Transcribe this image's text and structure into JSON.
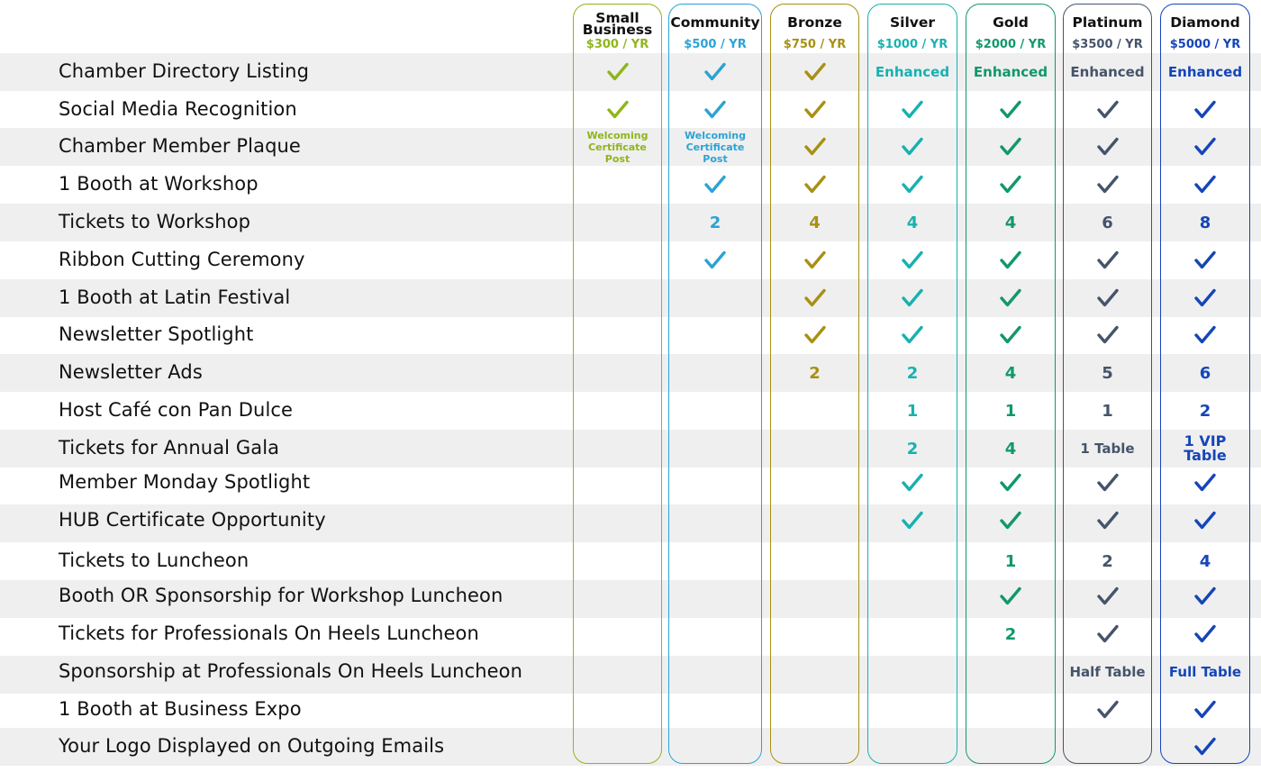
{
  "tiers": [
    {
      "name": "Small Business",
      "price": "$300 / YR",
      "color": "#8fb51b"
    },
    {
      "name": "Community",
      "price": "$500 / YR",
      "color": "#2aa3d4"
    },
    {
      "name": "Bronze",
      "price": "$750 / YR",
      "color": "#a89012"
    },
    {
      "name": "Silver",
      "price": "$1000 / YR",
      "color": "#17b1b1"
    },
    {
      "name": "Gold",
      "price": "$2000 / YR",
      "color": "#11986a"
    },
    {
      "name": "Platinum",
      "price": "$3500 / YR",
      "color": "#45546a"
    },
    {
      "name": "Diamond",
      "price": "$5000 / YR",
      "color": "#1545b8"
    }
  ],
  "features": [
    {
      "label": "Chamber Directory Listing",
      "values": [
        "check",
        "check",
        "check",
        "Enhanced",
        "Enhanced",
        "Enhanced",
        "Enhanced"
      ]
    },
    {
      "label": "Social Media Recognition",
      "values": [
        "check",
        "check",
        "check",
        "check",
        "check",
        "check",
        "check"
      ]
    },
    {
      "label": "Chamber Member Plaque",
      "values": [
        "Welcoming Certificate Post",
        "Welcoming Certificate Post",
        "check",
        "check",
        "check",
        "check",
        "check"
      ]
    },
    {
      "label": "1 Booth at Workshop",
      "values": [
        "",
        "check",
        "check",
        "check",
        "check",
        "check",
        "check"
      ]
    },
    {
      "label": "Tickets to Workshop",
      "values": [
        "",
        "2",
        "4",
        "4",
        "4",
        "6",
        "8"
      ]
    },
    {
      "label": "Ribbon Cutting Ceremony",
      "values": [
        "",
        "check",
        "check",
        "check",
        "check",
        "check",
        "check"
      ]
    },
    {
      "label": "1 Booth at Latin Festival",
      "values": [
        "",
        "",
        "check",
        "check",
        "check",
        "check",
        "check"
      ]
    },
    {
      "label": "Newsletter Spotlight",
      "values": [
        "",
        "",
        "check",
        "check",
        "check",
        "check",
        "check"
      ]
    },
    {
      "label": "Newsletter Ads",
      "values": [
        "",
        "",
        "2",
        "2",
        "4",
        "5",
        "6"
      ]
    },
    {
      "label": "Host Café con Pan Dulce",
      "values": [
        "",
        "",
        "",
        "1",
        "1",
        "1",
        "2"
      ]
    },
    {
      "label": "Tickets for Annual Gala",
      "values": [
        "",
        "",
        "",
        "2",
        "4",
        "1 Table",
        "1 VIP Table"
      ]
    },
    {
      "label": "Member Monday Spotlight",
      "values": [
        "",
        "",
        "",
        "check",
        "check",
        "check",
        "check"
      ]
    },
    {
      "label": "HUB Certificate Opportunity",
      "values": [
        "",
        "",
        "",
        "check",
        "check",
        "check",
        "check"
      ]
    },
    {
      "label": "Tickets to Luncheon",
      "values": [
        "",
        "",
        "",
        "",
        "1",
        "2",
        "4"
      ]
    },
    {
      "label": "Booth OR Sponsorship for Workshop Luncheon",
      "values": [
        "",
        "",
        "",
        "",
        "check",
        "check",
        "check"
      ]
    },
    {
      "label": "Tickets for Professionals On Heels Luncheon",
      "values": [
        "",
        "",
        "",
        "",
        "2",
        "check",
        "check"
      ]
    },
    {
      "label": "Sponsorship at Professionals On Heels Luncheon",
      "values": [
        "",
        "",
        "",
        "",
        "",
        "Half Table",
        "Full Table"
      ]
    },
    {
      "label": "1 Booth at Business Expo",
      "values": [
        "",
        "",
        "",
        "",
        "",
        "check",
        "check"
      ]
    },
    {
      "label": "Your Logo Displayed on Outgoing Emails",
      "values": [
        "",
        "",
        "",
        "",
        "",
        "",
        "check"
      ]
    }
  ]
}
